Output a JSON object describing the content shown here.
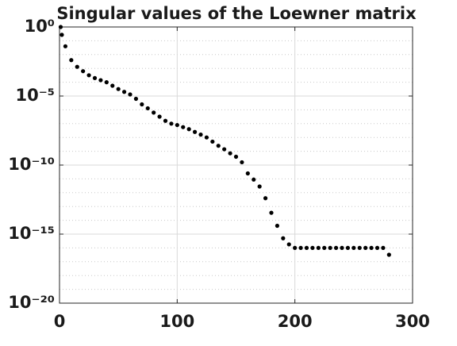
{
  "chart_data": {
    "type": "scatter",
    "title": "Singular values of the Loewner matrix",
    "x": [
      1,
      2,
      5,
      10,
      15,
      20,
      25,
      30,
      35,
      40,
      45,
      50,
      55,
      60,
      65,
      70,
      75,
      80,
      85,
      90,
      95,
      100,
      105,
      110,
      115,
      120,
      125,
      130,
      135,
      140,
      145,
      150,
      155,
      160,
      165,
      170,
      175,
      180,
      185,
      190,
      195,
      200,
      205,
      210,
      215,
      220,
      225,
      230,
      235,
      240,
      245,
      250,
      255,
      260,
      265,
      270,
      275,
      280
    ],
    "values": [
      1,
      0.27,
      0.04,
      0.004,
      0.0013,
      0.00063,
      0.00032,
      0.0002,
      0.00014,
      0.0001,
      5.6e-05,
      3.2e-05,
      2e-05,
      1.3e-05,
      6.3e-06,
      2.5e-06,
      1.3e-06,
      6.3e-07,
      3.2e-07,
      1.6e-07,
      1e-07,
      7.9e-08,
      5.6e-08,
      4e-08,
      2.5e-08,
      1.6e-08,
      1e-08,
      5e-09,
      2.5e-09,
      1.4e-09,
      7.1e-10,
      4e-10,
      1.6e-10,
      2.5e-11,
      8.9e-12,
      2.8e-12,
      4e-13,
      3.5e-14,
      4e-15,
      5e-16,
      1.8e-16,
      1e-16,
      1e-16,
      1e-16,
      1e-16,
      1e-16,
      1e-16,
      1e-16,
      1e-16,
      1e-16,
      1e-16,
      1e-16,
      1e-16,
      1e-16,
      1e-16,
      1e-16,
      1e-16,
      3.2e-17
    ],
    "color": "#000000",
    "xlim": [
      0,
      300
    ],
    "xticks": [
      0,
      100,
      200,
      300
    ],
    "ylim": [
      1e-20,
      1
    ],
    "yticks": [
      {
        "value": 1e-20,
        "label": "10⁻²⁰"
      },
      {
        "value": 1e-15,
        "label": "10⁻¹⁵"
      },
      {
        "value": 1e-10,
        "label": "10⁻¹⁰"
      },
      {
        "value": 1e-05,
        "label": "10⁻⁵"
      },
      {
        "value": 1,
        "label": "10⁰"
      }
    ],
    "ylog": true,
    "grid": true
  }
}
